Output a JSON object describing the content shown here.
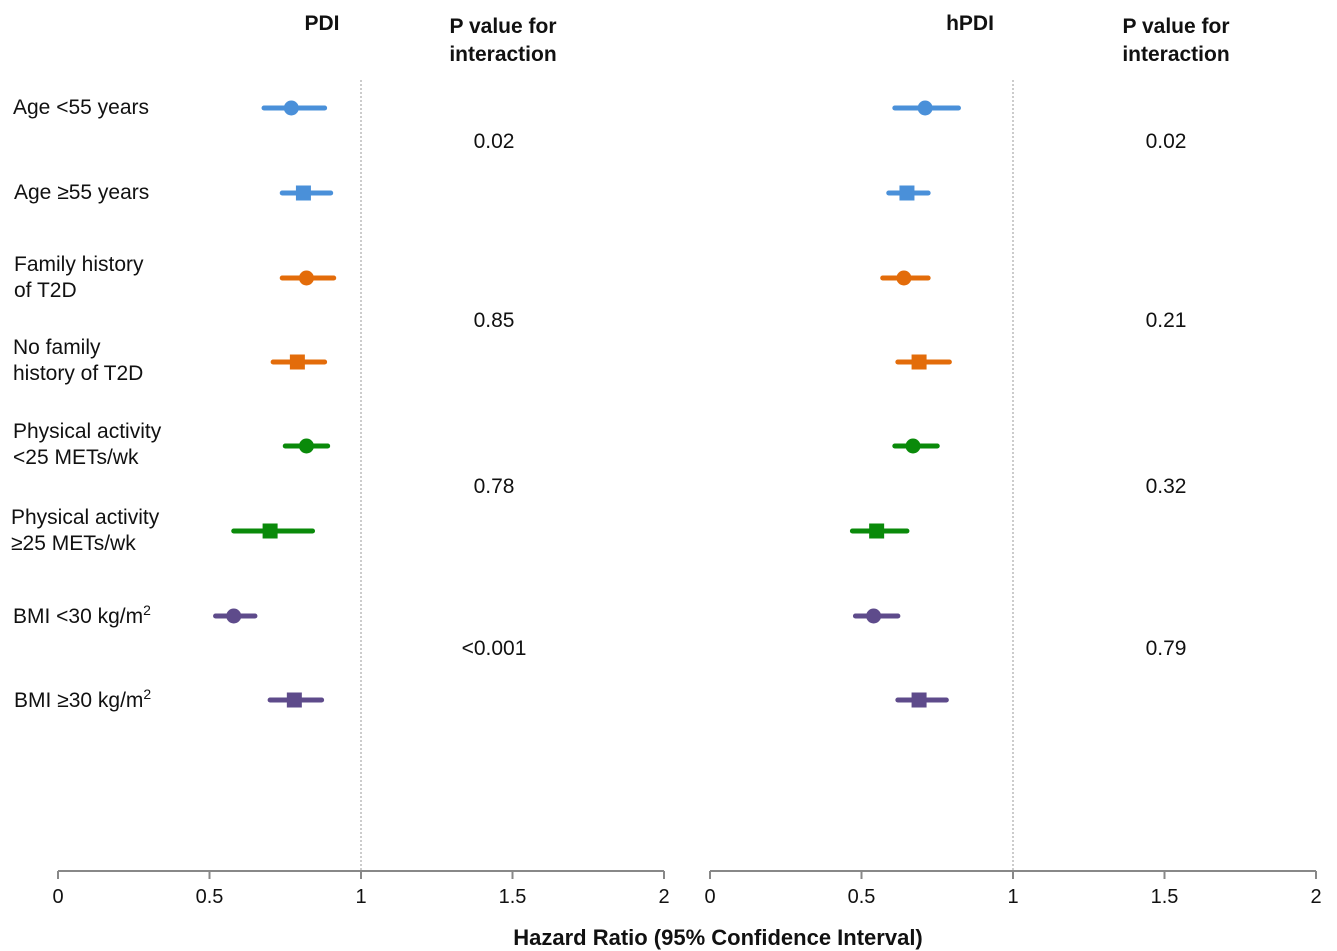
{
  "chart_data": {
    "type": "forest",
    "xlabel": "Hazard Ratio (95% Confidence Interval)",
    "xlim": [
      0,
      2
    ],
    "xticks": [
      "0",
      "0.5",
      "1",
      "1.5",
      "2"
    ],
    "reference_line": 1,
    "pvalue_header": [
      "P value for",
      "interaction"
    ],
    "colors": {
      "age": "#4a90d9",
      "family": "#e36c0a",
      "activity": "#0a8a0a",
      "bmi": "#5e4b8b"
    },
    "rows": [
      {
        "label": [
          "Age <55 years"
        ],
        "group": "age",
        "marker": "circle"
      },
      {
        "label": [
          "Age ≥55 years"
        ],
        "group": "age",
        "marker": "square"
      },
      {
        "label": [
          "Family history",
          "of T2D"
        ],
        "group": "family",
        "marker": "circle"
      },
      {
        "label": [
          "No family",
          "history of T2D"
        ],
        "group": "family",
        "marker": "square"
      },
      {
        "label": [
          "Physical activity",
          "<25 METs/wk"
        ],
        "group": "activity",
        "marker": "circle"
      },
      {
        "label": [
          "Physical activity",
          "≥25 METs/wk"
        ],
        "group": "activity",
        "marker": "square"
      },
      {
        "label": [
          "BMI <30 kg/m",
          "2"
        ],
        "group": "bmi",
        "marker": "circle"
      },
      {
        "label": [
          "BMI ≥30 kg/m",
          "2"
        ],
        "group": "bmi",
        "marker": "square"
      }
    ],
    "panels": [
      {
        "title": "PDI",
        "estimates": [
          {
            "hr": 0.77,
            "lo": 0.68,
            "hi": 0.88
          },
          {
            "hr": 0.81,
            "lo": 0.74,
            "hi": 0.9
          },
          {
            "hr": 0.82,
            "lo": 0.74,
            "hi": 0.91
          },
          {
            "hr": 0.79,
            "lo": 0.71,
            "hi": 0.88
          },
          {
            "hr": 0.82,
            "lo": 0.75,
            "hi": 0.89
          },
          {
            "hr": 0.7,
            "lo": 0.58,
            "hi": 0.84
          },
          {
            "hr": 0.58,
            "lo": 0.52,
            "hi": 0.65
          },
          {
            "hr": 0.78,
            "lo": 0.7,
            "hi": 0.87
          }
        ],
        "pvalues": [
          "0.02",
          "0.85",
          "0.78",
          "<0.001"
        ]
      },
      {
        "title": "hPDI",
        "estimates": [
          {
            "hr": 0.71,
            "lo": 0.61,
            "hi": 0.82
          },
          {
            "hr": 0.65,
            "lo": 0.59,
            "hi": 0.72
          },
          {
            "hr": 0.64,
            "lo": 0.57,
            "hi": 0.72
          },
          {
            "hr": 0.69,
            "lo": 0.62,
            "hi": 0.79
          },
          {
            "hr": 0.67,
            "lo": 0.61,
            "hi": 0.75
          },
          {
            "hr": 0.55,
            "lo": 0.47,
            "hi": 0.65
          },
          {
            "hr": 0.54,
            "lo": 0.48,
            "hi": 0.62
          },
          {
            "hr": 0.69,
            "lo": 0.62,
            "hi": 0.78
          }
        ],
        "pvalues": [
          "0.02",
          "0.21",
          "0.32",
          "0.79"
        ]
      }
    ]
  }
}
